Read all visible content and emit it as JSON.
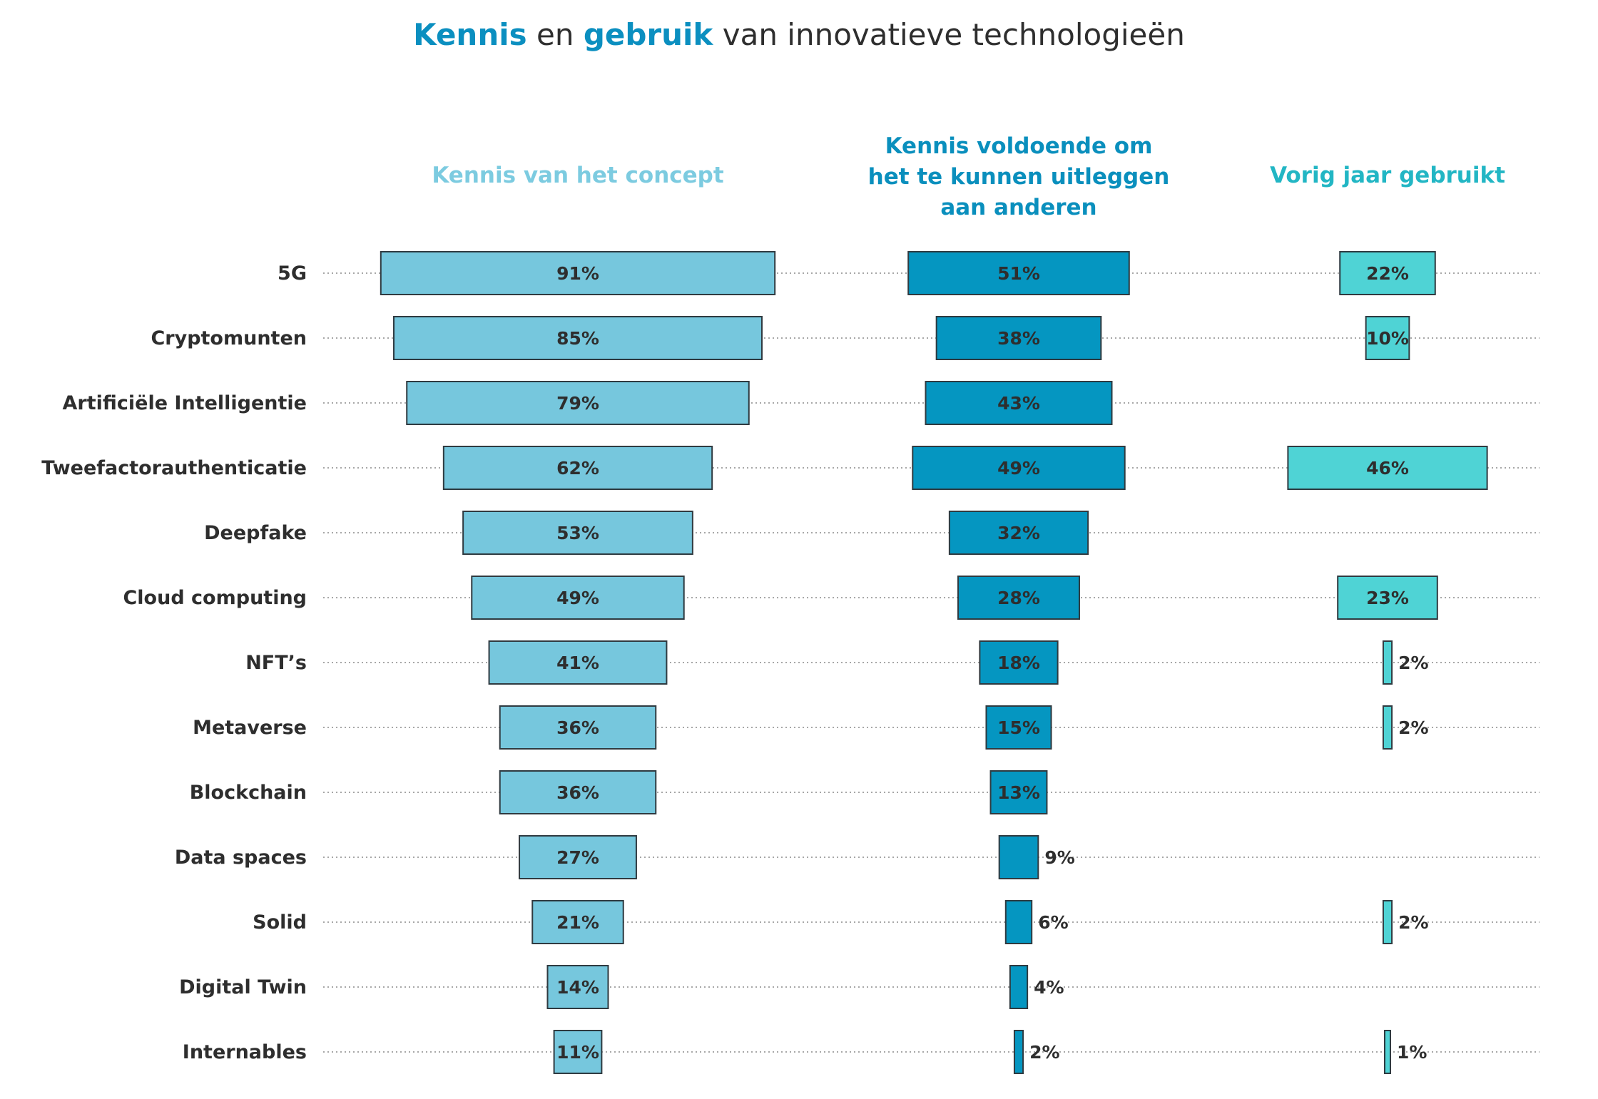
{
  "chart_data": {
    "type": "bar",
    "title": {
      "part1": "Kennis",
      "part2": " en ",
      "part3": "gebruik",
      "part4": " van innovatieve technologieën"
    },
    "categories": [
      "5G",
      "Cryptomunten",
      "Artificiële Intelligentie",
      "Tweefactorauthenticatie",
      "Deepfake",
      "Cloud computing",
      "NFT’s",
      "Metaverse",
      "Blockchain",
      "Data spaces",
      "Solid",
      "Digital Twin",
      "Internables"
    ],
    "series": [
      {
        "name": "Kennis van het concept",
        "header_lines": [
          "Kennis van het concept"
        ],
        "color": "#76c7dd",
        "header_color": "#7ccbe0",
        "values": [
          91,
          85,
          79,
          62,
          53,
          49,
          41,
          36,
          36,
          27,
          21,
          14,
          11
        ],
        "labels": [
          "91%",
          "85%",
          "79%",
          "62%",
          "53%",
          "49%",
          "41%",
          "36%",
          "36%",
          "27%",
          "21%",
          "14%",
          "11%"
        ]
      },
      {
        "name": "Kennis voldoende om het te kunnen uitleggen aan anderen",
        "header_lines": [
          "Kennis voldoende om",
          "het te kunnen uitleggen",
          "aan anderen"
        ],
        "color": "#0596c1",
        "header_color": "#0a8fbd",
        "values": [
          51,
          38,
          43,
          49,
          32,
          28,
          18,
          15,
          13,
          9,
          6,
          4,
          2
        ],
        "labels": [
          "51%",
          "38%",
          "43%",
          "49%",
          "32%",
          "28%",
          "18%",
          "15%",
          "13%",
          "9%",
          "6%",
          "4%",
          "2%"
        ]
      },
      {
        "name": "Vorig jaar gebruikt",
        "header_lines": [
          "Vorig jaar gebruikt"
        ],
        "color": "#4fd3d5",
        "header_color": "#22b6c4",
        "values": [
          22,
          10,
          null,
          46,
          null,
          23,
          2,
          2,
          null,
          null,
          2,
          null,
          1
        ],
        "labels": [
          "22%",
          "10%",
          "",
          "46%",
          "",
          "23%",
          "2%",
          "2%",
          "",
          "",
          "2%",
          "",
          "1%"
        ]
      }
    ],
    "unit": "%"
  }
}
